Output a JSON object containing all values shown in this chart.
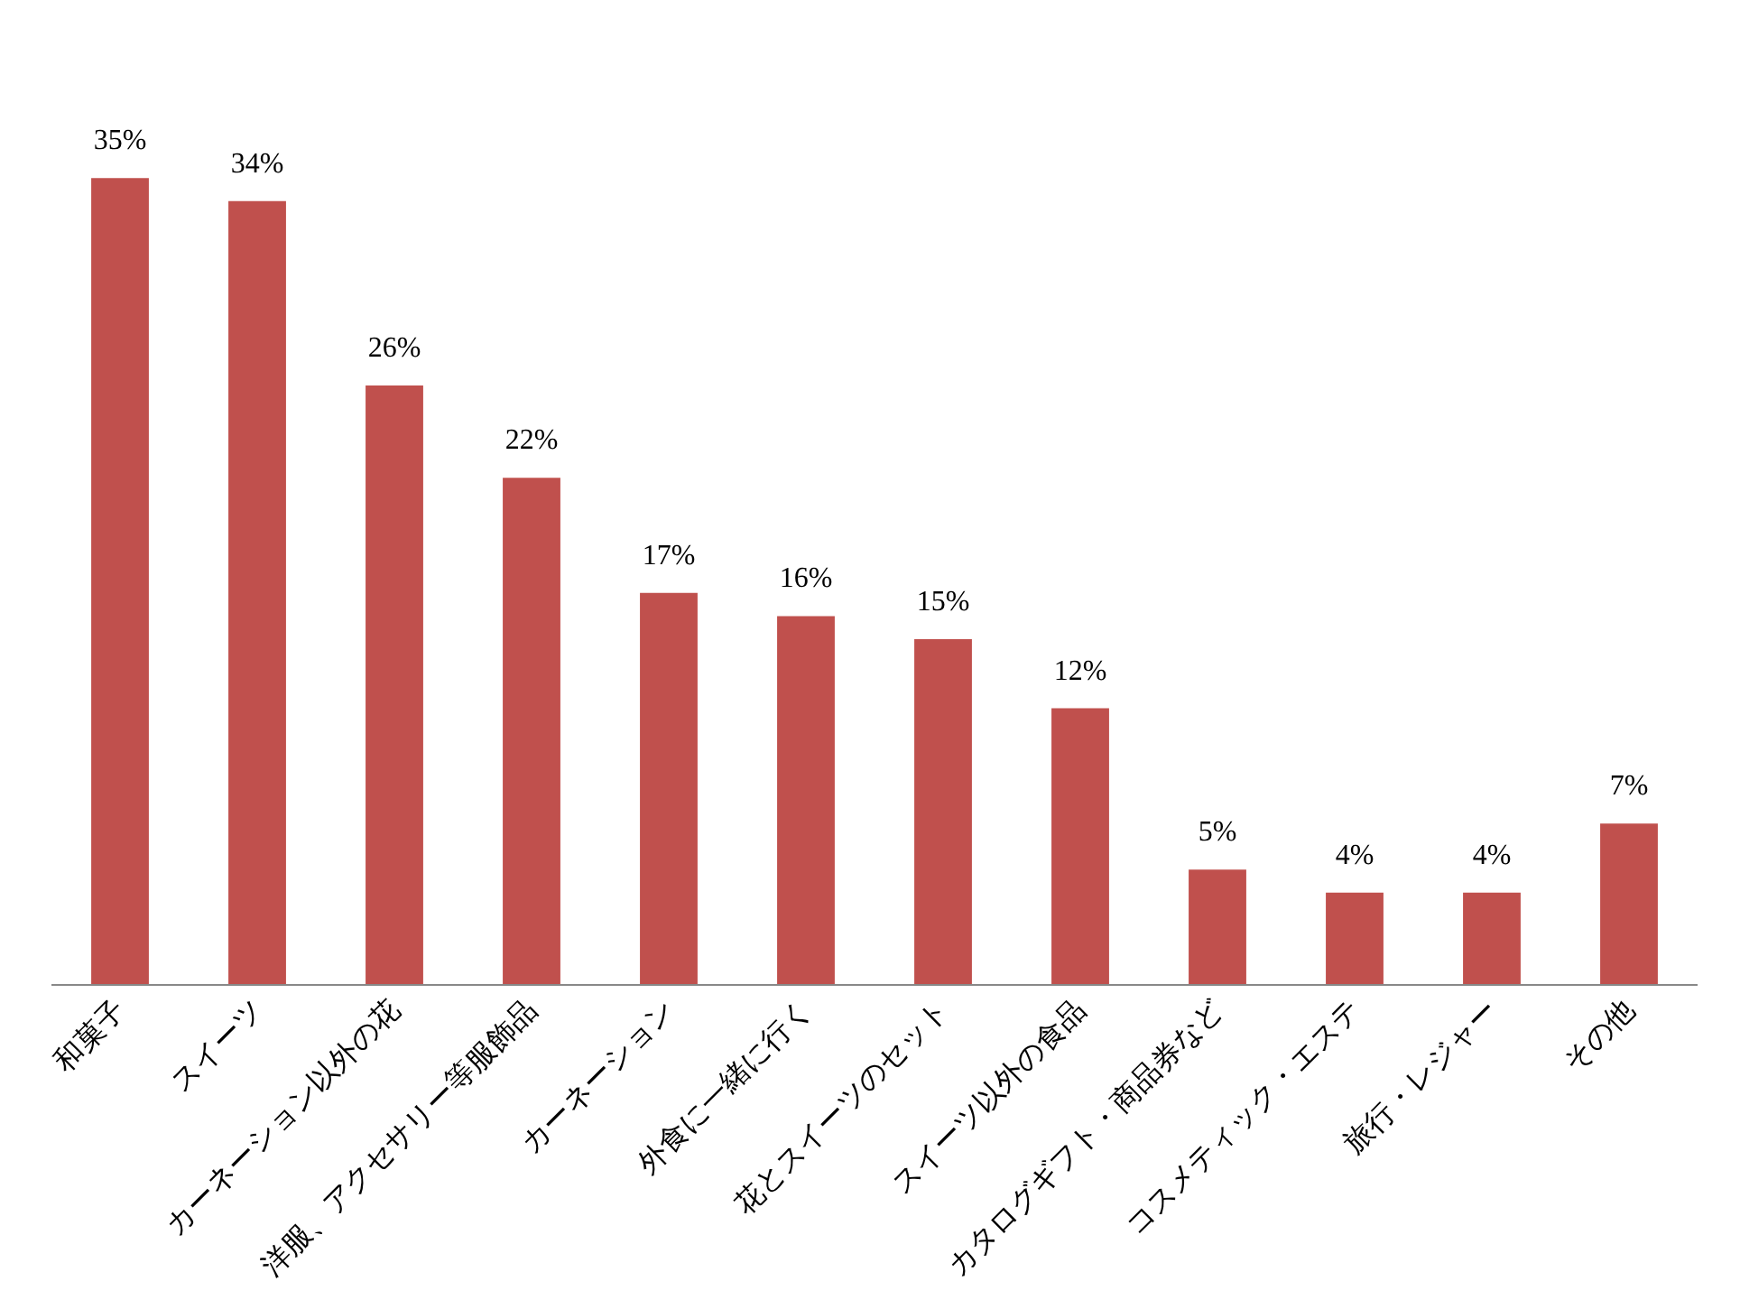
{
  "chart_data": {
    "type": "bar",
    "categories": [
      "和菓子",
      "スイーツ",
      "カーネーション以外の花",
      "洋服、アクセサリー等服飾品",
      "カーネーション",
      "外食に一緒に行く",
      "花とスイーツのセット",
      "スイーツ以外の食品",
      "カタログギフト・商品券など",
      "コスメティック・エステ",
      "旅行・レジャー",
      "その他"
    ],
    "values": [
      35,
      34,
      26,
      22,
      17,
      16,
      15,
      12,
      5,
      4,
      4,
      7
    ],
    "value_labels": [
      "35%",
      "34%",
      "26%",
      "22%",
      "17%",
      "16%",
      "15%",
      "12%",
      "5%",
      "4%",
      "4%",
      "7%"
    ],
    "color": "#c0504d",
    "grid": false
  }
}
